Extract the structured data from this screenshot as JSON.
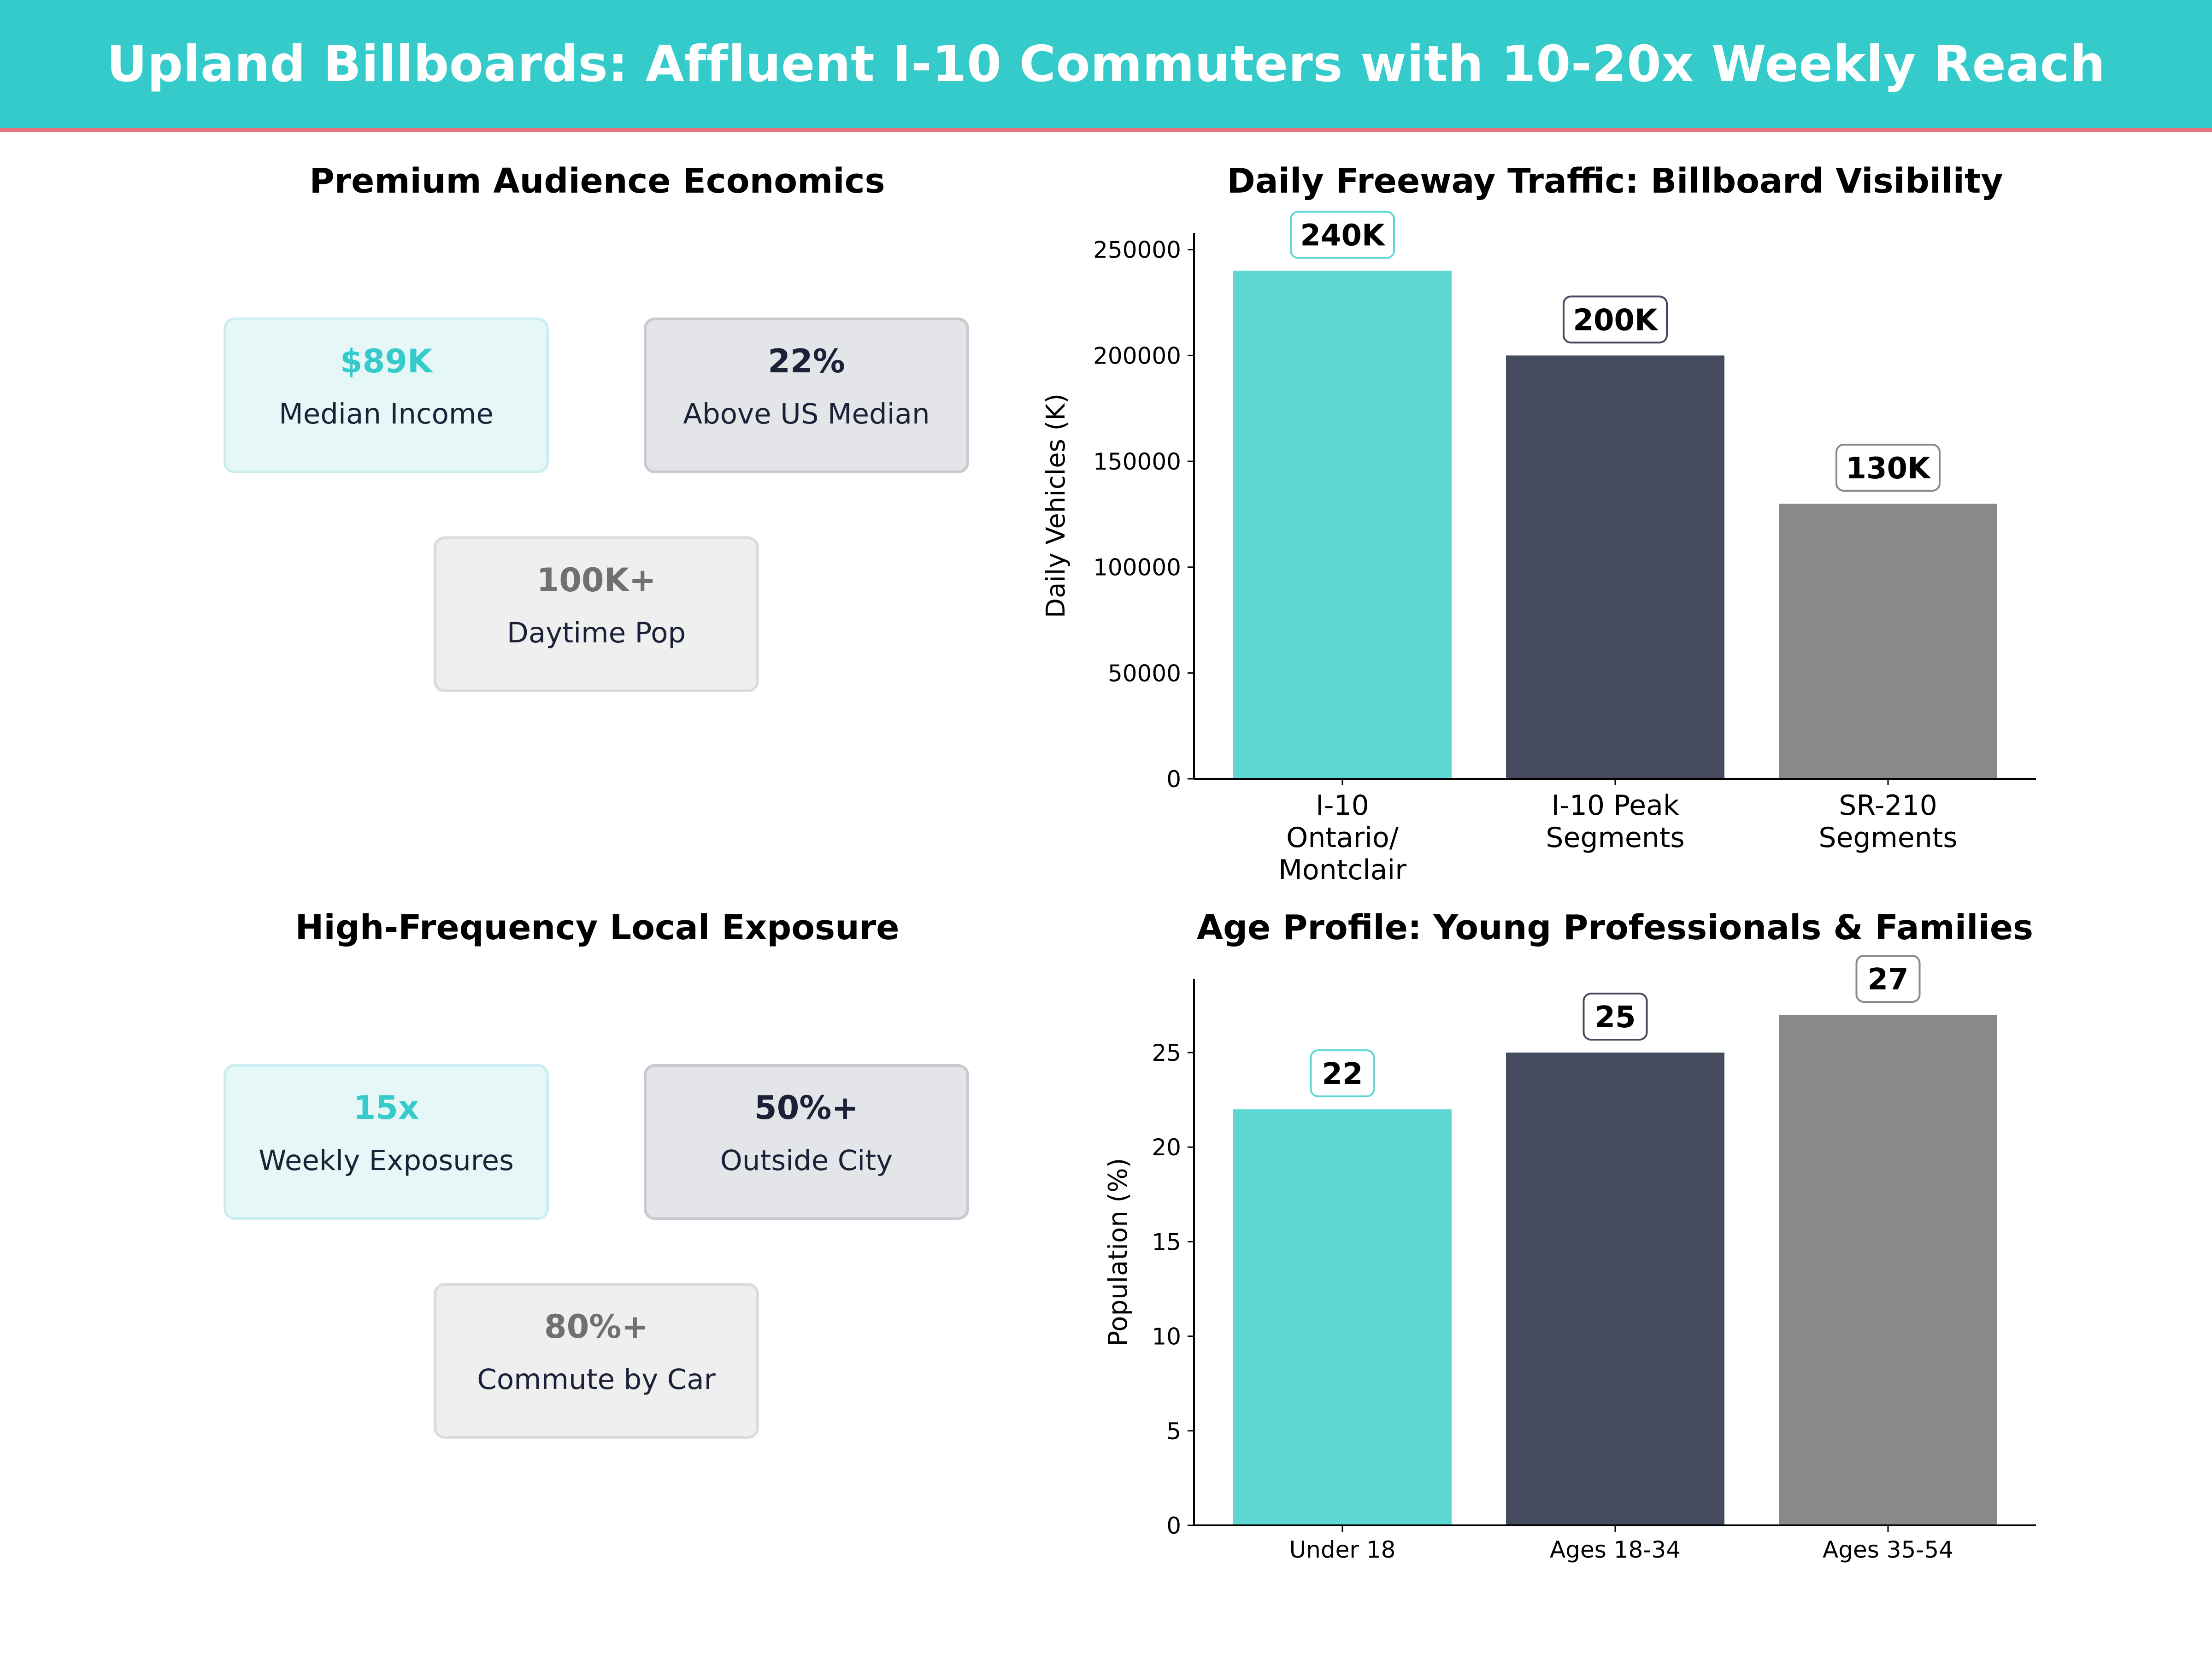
{
  "header": {
    "title": "Upland Billboards: Affluent I-10 Commuters with 10-20x Weekly Reach"
  },
  "colors": {
    "header_bg": "#35cbcb",
    "header_rule": "#e8737d",
    "teal": "#5dd8d4",
    "navy": "#454a5f",
    "gray": "#898989"
  },
  "audience": {
    "title": "Premium Audience Economics",
    "cards": [
      {
        "value": "$89K",
        "label": "Median Income"
      },
      {
        "value": "22%",
        "label": "Above US Median"
      },
      {
        "value": "100K+",
        "label": "Daytime Pop"
      }
    ]
  },
  "exposure": {
    "title": "High-Frequency Local Exposure",
    "cards": [
      {
        "value": "15x",
        "label": "Weekly Exposures"
      },
      {
        "value": "50%+",
        "label": "Outside City"
      },
      {
        "value": "80%+",
        "label": "Commute by Car"
      }
    ]
  },
  "chart_data": [
    {
      "type": "bar",
      "title": "Daily Freeway Traffic: Billboard Visibility",
      "xlabel": "",
      "ylabel": "Daily Vehicles (K)",
      "categories": [
        [
          "I-10",
          "Ontario/",
          "Montclair"
        ],
        [
          "I-10 Peak",
          "Segments"
        ],
        [
          "SR-210",
          "Segments"
        ]
      ],
      "values": [
        240000,
        200000,
        130000
      ],
      "data_labels": [
        "240K",
        "200K",
        "130K"
      ],
      "ylim": [
        0,
        258000
      ],
      "yticks": [
        0,
        50000,
        100000,
        150000,
        200000,
        250000
      ],
      "grid": false
    },
    {
      "type": "bar",
      "title": "Age Profile: Young Professionals & Families",
      "xlabel": "",
      "ylabel": "Population (%)",
      "categories": [
        [
          "Under 18"
        ],
        [
          "Ages 18-34"
        ],
        [
          "Ages 35-54"
        ]
      ],
      "values": [
        22,
        25,
        27
      ],
      "data_labels": [
        "22",
        "25",
        "27"
      ],
      "ylim": [
        0,
        28.9
      ],
      "yticks": [
        0,
        5,
        10,
        15,
        20,
        25
      ],
      "grid": false
    }
  ]
}
